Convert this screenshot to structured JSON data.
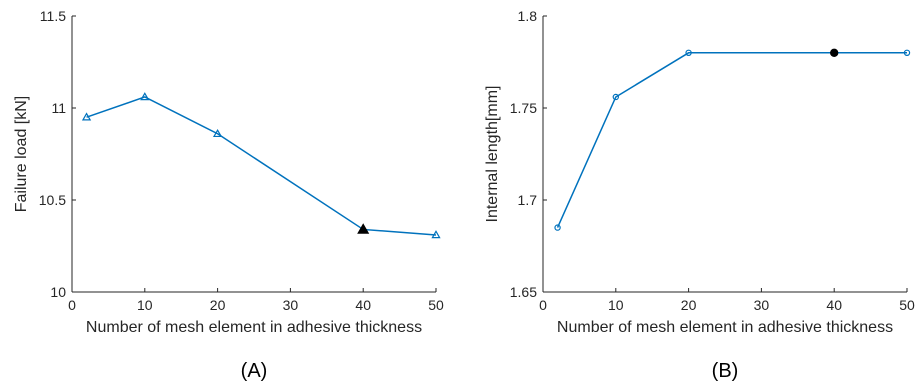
{
  "chart_data": [
    {
      "type": "line",
      "panel_label": "(A)",
      "xlabel": "Number of mesh element in adhesive thickness",
      "ylabel": "Failure load [kN]",
      "xlim": [
        0,
        50
      ],
      "ylim": [
        10,
        11.5
      ],
      "xticks": [
        0,
        10,
        20,
        30,
        40,
        50
      ],
      "yticks": [
        10,
        10.5,
        11,
        11.5
      ],
      "xtick_labels": [
        "0",
        "10",
        "20",
        "30",
        "40",
        "50"
      ],
      "ytick_labels": [
        "10",
        "10.5",
        "11",
        "11.5"
      ],
      "grid": false,
      "marker": "triangle",
      "series": [
        {
          "x": [
            2,
            10,
            20,
            40,
            50
          ],
          "y": [
            10.95,
            11.06,
            10.86,
            10.34,
            10.31
          ],
          "highlight_index": 3
        }
      ],
      "colors": {
        "line": "#0072BD",
        "highlight": "#000000"
      }
    },
    {
      "type": "line",
      "panel_label": "(B)",
      "xlabel": "Number of mesh element in adhesive thickness",
      "ylabel": "Internal length[mm]",
      "xlim": [
        0,
        50
      ],
      "ylim": [
        1.65,
        1.8
      ],
      "xticks": [
        0,
        10,
        20,
        30,
        40,
        50
      ],
      "yticks": [
        1.65,
        1.7,
        1.75,
        1.8
      ],
      "xtick_labels": [
        "0",
        "10",
        "20",
        "30",
        "40",
        "50"
      ],
      "ytick_labels": [
        "1.65",
        "1.7",
        "1.75",
        "1.8"
      ],
      "grid": false,
      "marker": "circle",
      "series": [
        {
          "x": [
            2,
            10,
            20,
            40,
            50
          ],
          "y": [
            1.685,
            1.756,
            1.78,
            1.78,
            1.78
          ],
          "highlight_index": 3
        }
      ],
      "colors": {
        "line": "#0072BD",
        "highlight": "#000000"
      }
    }
  ]
}
